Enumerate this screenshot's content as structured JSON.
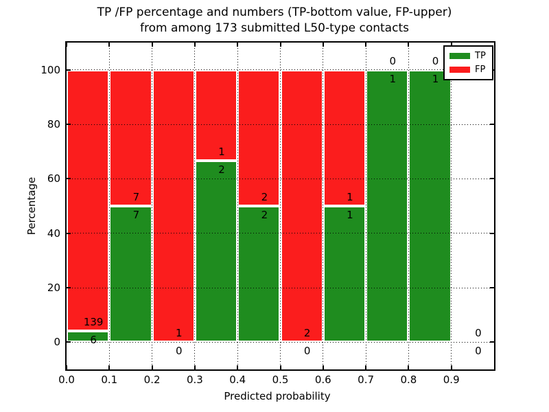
{
  "chart_data": {
    "type": "bar",
    "subtype": "stacked-percentage-histogram",
    "title_line1": "TP /FP percentage and numbers (TP-bottom value, FP-upper)",
    "title_line2": "from among 173 submitted L50-type contacts",
    "xlabel": "Predicted probability",
    "ylabel": "Percentage",
    "xlim": [
      0.0,
      1.0
    ],
    "ylim": [
      -10,
      110
    ],
    "grid": true,
    "x_tick_values": [
      0.0,
      0.1,
      0.2,
      0.3,
      0.4,
      0.5,
      0.6,
      0.7,
      0.8,
      0.9
    ],
    "x_tick_labels": [
      "0.0",
      "0.1",
      "0.2",
      "0.3",
      "0.4",
      "0.5",
      "0.6",
      "0.7",
      "0.8",
      "0.9"
    ],
    "y_tick_values": [
      0,
      20,
      40,
      60,
      80,
      100
    ],
    "y_tick_labels": [
      "0",
      "20",
      "40",
      "60",
      "80",
      "100"
    ],
    "legend_position": "upper right",
    "legend": {
      "items": [
        {
          "label": "TP",
          "color": "#1f8c1f"
        },
        {
          "label": "FP",
          "color": "#fb1d1d"
        }
      ]
    },
    "colors": {
      "tp": "#1f8c1f",
      "fp": "#fb1d1d"
    },
    "bins": [
      {
        "x0": 0.0,
        "x1": 0.1,
        "tp": 6,
        "fp": 139
      },
      {
        "x0": 0.1,
        "x1": 0.2,
        "tp": 7,
        "fp": 7
      },
      {
        "x0": 0.2,
        "x1": 0.3,
        "tp": 0,
        "fp": 1
      },
      {
        "x0": 0.3,
        "x1": 0.4,
        "tp": 2,
        "fp": 1
      },
      {
        "x0": 0.4,
        "x1": 0.5,
        "tp": 2,
        "fp": 2
      },
      {
        "x0": 0.5,
        "x1": 0.6,
        "tp": 0,
        "fp": 2
      },
      {
        "x0": 0.6,
        "x1": 0.7,
        "tp": 1,
        "fp": 1
      },
      {
        "x0": 0.7,
        "x1": 0.8,
        "tp": 1,
        "fp": 0
      },
      {
        "x0": 0.8,
        "x1": 0.9,
        "tp": 1,
        "fp": 0
      },
      {
        "x0": 0.9,
        "x1": 1.0,
        "tp": 0,
        "fp": 0
      }
    ],
    "tp_percent_per_bin": [
      4.14,
      50.0,
      0.0,
      66.67,
      50.0,
      0.0,
      50.0,
      100.0,
      100.0,
      0.0
    ],
    "total_contacts": 173
  }
}
